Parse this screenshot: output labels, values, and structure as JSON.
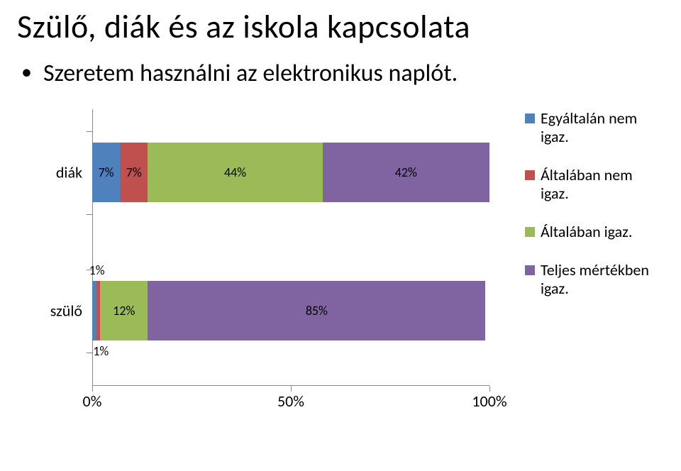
{
  "title": "Szülő, diák  és az iskola kapcsolata",
  "bullet": "Szeretem használni az elektronikus naplót.",
  "chart": {
    "type": "stacked-bar-horizontal",
    "background_color": "#ffffff",
    "axis_color": "#888888",
    "text_color": "#000000",
    "label_fontsize": 22,
    "seg_label_fontsize": 18,
    "xlim": [
      0,
      100
    ],
    "xtick_step": 50,
    "xtick_labels": [
      "0%",
      "50%",
      "100%"
    ],
    "categories": [
      {
        "name": "diák",
        "top_pct": 12,
        "segments": [
          {
            "value": 7,
            "label": "7%",
            "color": "#4f81bd",
            "label_pos": "inside"
          },
          {
            "value": 7,
            "label": "7%",
            "color": "#c0504d",
            "label_pos": "inside"
          },
          {
            "value": 44,
            "label": "44%",
            "color": "#9bbb59",
            "label_pos": "inside"
          },
          {
            "value": 42,
            "label": "42%",
            "color": "#8064a2",
            "label_pos": "inside"
          }
        ]
      },
      {
        "name": "szülő",
        "top_pct": 62,
        "segments": [
          {
            "value": 1,
            "label": "1%",
            "color": "#4f81bd",
            "label_pos": "above"
          },
          {
            "value": 1,
            "label": "1%",
            "color": "#c0504d",
            "label_pos": "below"
          },
          {
            "value": 12,
            "label": "12%",
            "color": "#9bbb59",
            "label_pos": "inside"
          },
          {
            "value": 85,
            "label": "85%",
            "color": "#8064a2",
            "label_pos": "inside"
          }
        ]
      }
    ],
    "legend": [
      {
        "label": "Egyáltalán nem igaz.",
        "color": "#4f81bd"
      },
      {
        "label": "Általában nem igaz.",
        "color": "#c0504d"
      },
      {
        "label": "Általában igaz.",
        "color": "#9bbb59"
      },
      {
        "label": "Teljes mértékben igaz.",
        "color": "#8064a2"
      }
    ]
  }
}
